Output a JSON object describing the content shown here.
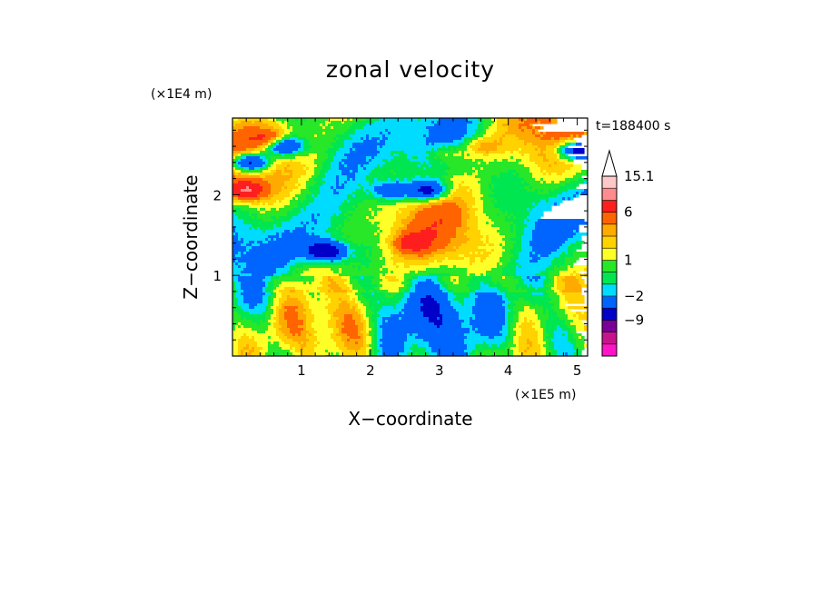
{
  "chart_data": {
    "type": "heatmap",
    "title": "zonal velocity",
    "xlabel": "X−coordinate",
    "ylabel": "Z−coordinate",
    "x_unit": "(×1E5 m)",
    "y_unit": "(×1E4 m)",
    "time_label": "t=188400 s",
    "xlim": [
      0,
      5.15
    ],
    "ylim": [
      0,
      2.95
    ],
    "x_ticks": [
      "1",
      "2",
      "3",
      "4",
      "5"
    ],
    "y_ticks": [
      "1",
      "2"
    ],
    "x_tick_values": [
      1,
      2,
      3,
      4,
      5
    ],
    "y_tick_values": [
      1,
      2
    ],
    "colorbar": {
      "levels": [
        -20,
        -15,
        -9,
        -5,
        -2,
        -1,
        0,
        1,
        2,
        3,
        4,
        6,
        9,
        12,
        15.1
      ],
      "colors": [
        "#ff14c8",
        "#c8148c",
        "#780096",
        "#0000c8",
        "#0064ff",
        "#00dcff",
        "#00e650",
        "#28e628",
        "#ffff28",
        "#ffd200",
        "#ffaa00",
        "#ff6400",
        "#ff1e1e",
        "#ff8c8c",
        "#ffc8c8",
        "#ffffff"
      ],
      "tick_labels": [
        "15.1",
        "6",
        "1",
        "−2",
        "−9"
      ],
      "tick_values": [
        15.1,
        6,
        1,
        -2,
        -9
      ],
      "extend": "max"
    },
    "features": [
      {
        "x": 0.25,
        "z": 2.4,
        "value": -10
      },
      {
        "x": 0.75,
        "z": 2.6,
        "value": -8
      },
      {
        "x": 1.35,
        "z": 1.3,
        "value": -9
      },
      {
        "x": 2.3,
        "z": 2.05,
        "value": -5
      },
      {
        "x": 2.85,
        "z": 2.05,
        "value": -8
      },
      {
        "x": 5.0,
        "z": 2.55,
        "value": -10
      },
      {
        "x": 0.2,
        "z": 2.05,
        "value": 7
      },
      {
        "x": 0.55,
        "z": 2.7,
        "value": 4
      },
      {
        "x": 2.6,
        "z": 1.4,
        "value": 4
      },
      {
        "x": 3.1,
        "z": 2.5,
        "value": 3
      },
      {
        "x": 3.6,
        "z": 2.6,
        "value": 3
      }
    ]
  }
}
